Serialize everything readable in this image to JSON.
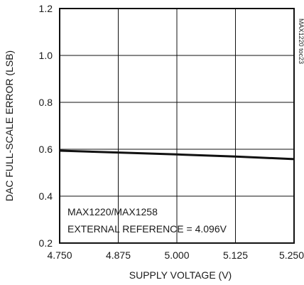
{
  "chart_data": {
    "type": "line",
    "xlabel": "SUPPLY VOLTAGE (V)",
    "ylabel": "DAC FULL-SCALE ERROR (LSB)",
    "xlim": [
      4.75,
      5.25
    ],
    "ylim": [
      0.2,
      1.2
    ],
    "x_ticks": [
      "4.750",
      "4.875",
      "5.000",
      "5.125",
      "5.250"
    ],
    "y_ticks": [
      "0.2",
      "0.4",
      "0.6",
      "0.8",
      "1.0",
      "1.2"
    ],
    "grid": true,
    "series": [
      {
        "x": [
          4.75,
          4.875,
          5.0,
          5.125,
          5.25
        ],
        "y": [
          0.594,
          0.586,
          0.578,
          0.569,
          0.558
        ]
      }
    ],
    "annotations": [
      "MAX1220/MAX1258",
      "EXTERNAL REFERENCE = 4.096V"
    ],
    "doc_code": "MAX1220 toc23",
    "colors": {
      "line": "#111111",
      "grid": "#111111",
      "frame": "#111111"
    }
  }
}
